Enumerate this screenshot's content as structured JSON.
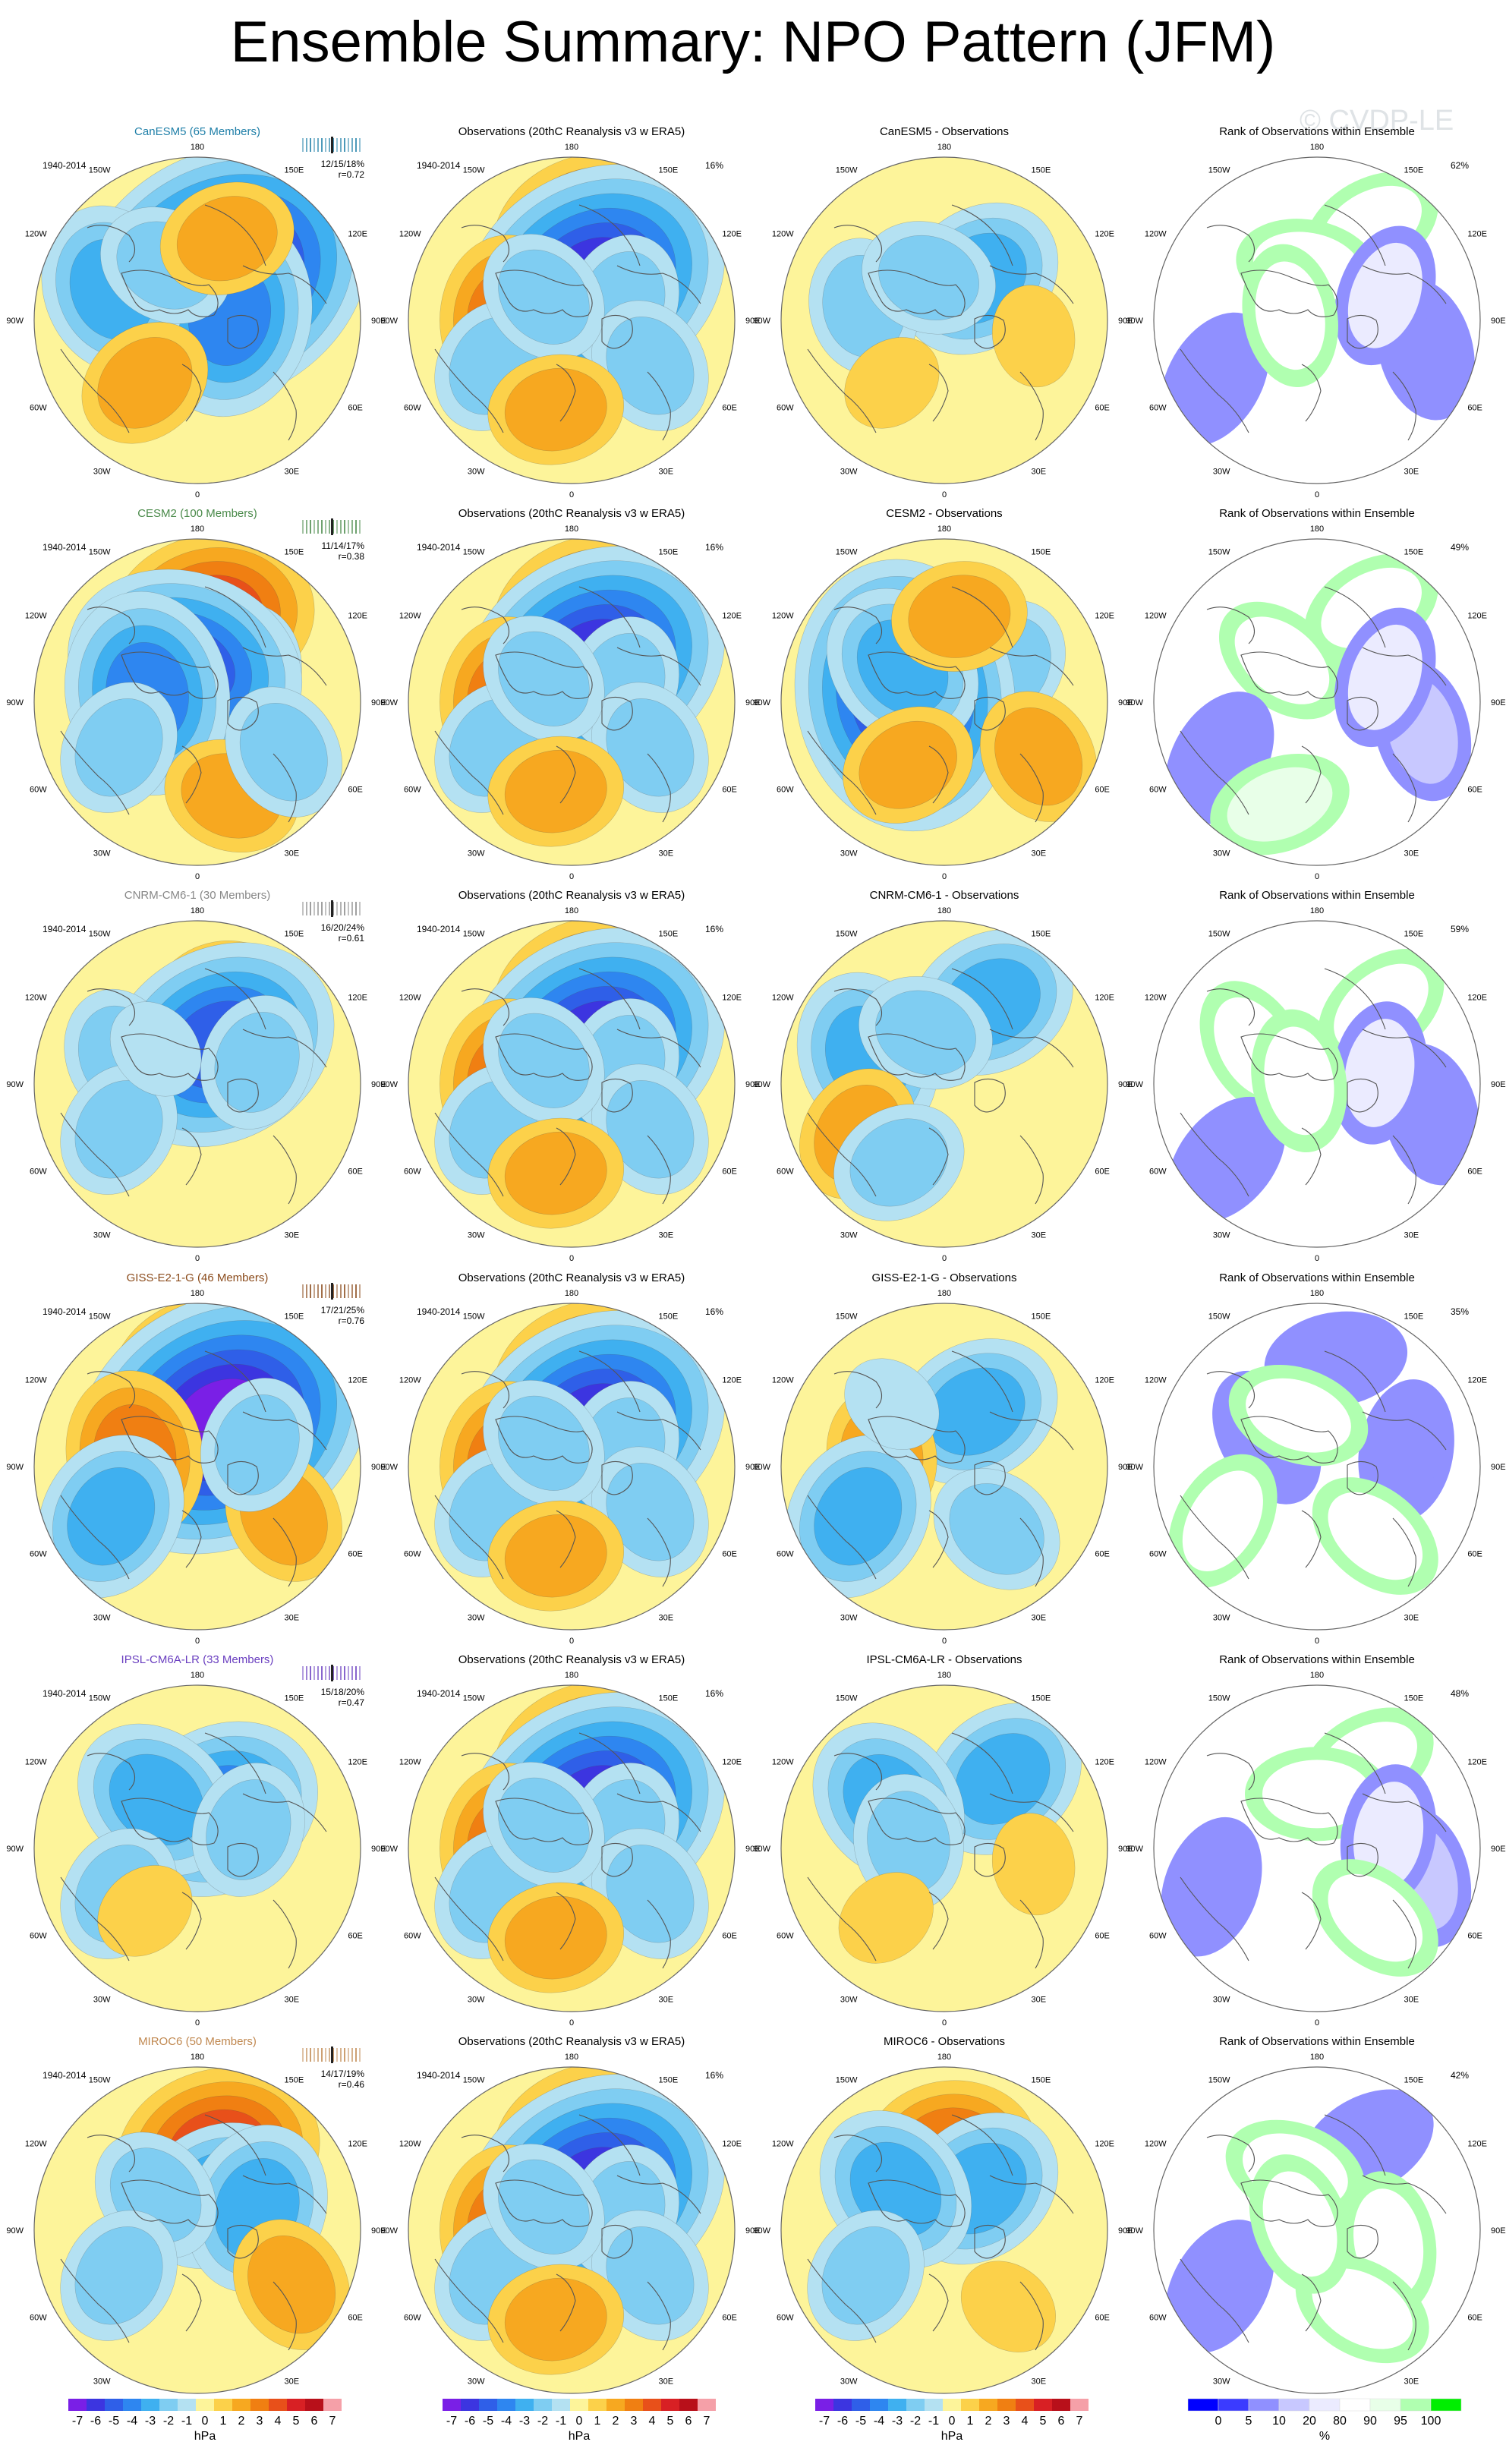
{
  "page": {
    "title": "Ensemble Summary: NPO Pattern (JFM)",
    "watermark": "© CVDP-LE"
  },
  "palette": {
    "anom": [
      "#7a1fe6",
      "#3c35e0",
      "#2f5fe8",
      "#2e86f0",
      "#3fb0f0",
      "#7fcdf2",
      "#b4e1f2",
      "#fdf49a",
      "#fcd14a",
      "#f7a820",
      "#f07f12",
      "#e8501a",
      "#d82024",
      "#b8101a",
      "#f5a0a8"
    ],
    "rank": [
      "#0000ff",
      "#3b3bff",
      "#9090ff",
      "#c8c8ff",
      "#ebebff",
      "#ffffff",
      "#e8ffe8",
      "#b0ffb0",
      "#00ee00"
    ]
  },
  "column_titles": {
    "obs": "Observations (20thC Reanalysis v3 w ERA5)",
    "diff_suffix": " - Observations",
    "rank": "Rank of Observations within Ensemble"
  },
  "period": "1940-2014",
  "longitude_labels": [
    "180",
    "150E",
    "120E",
    "90E",
    "60E",
    "30E",
    "0",
    "30W",
    "60W",
    "90W",
    "120W",
    "150W"
  ],
  "obs_variance": "16%",
  "rows": [
    {
      "model": "CanESM5 (65 Members)",
      "color": "#1f7fa8",
      "stats": "12/15/18%",
      "corr": "r=0.72",
      "rank_pct": "62%",
      "model_field": [
        [
          150,
          62,
          -6.5
        ],
        [
          100,
          72,
          -3.5
        ],
        [
          250,
          40,
          -2.5
        ],
        [
          210,
          55,
          -1.5
        ],
        [
          320,
          45,
          1.5
        ],
        [
          160,
          42,
          1.2
        ]
      ],
      "diff_field": [
        [
          140,
          60,
          -2.2
        ],
        [
          260,
          45,
          -1.8
        ],
        [
          200,
          65,
          -1.2
        ],
        [
          320,
          45,
          0.8
        ],
        [
          80,
          40,
          0.8
        ]
      ],
      "rank_field": [
        [
          150,
          30,
          70
        ],
        [
          190,
          60,
          72
        ],
        [
          300,
          25,
          5
        ],
        [
          75,
          28,
          8
        ],
        [
          110,
          50,
          20
        ],
        [
          260,
          75,
          75
        ]
      ]
    },
    {
      "model": "CESM2 (100 Members)",
      "color": "#4a8a4a",
      "stats": "11/14/17%",
      "corr": "r=0.38",
      "rank_pct": "49%",
      "model_field": [
        [
          170,
          42,
          3.5
        ],
        [
          120,
          70,
          -2.5
        ],
        [
          200,
          70,
          -4.5
        ],
        [
          260,
          62,
          -3.5
        ],
        [
          300,
          40,
          -1.5
        ],
        [
          20,
          35,
          2
        ],
        [
          60,
          35,
          -1.5
        ]
      ],
      "diff_field": [
        [
          120,
          50,
          -2
        ],
        [
          260,
          68,
          -5.5
        ],
        [
          230,
          60,
          -3
        ],
        [
          330,
          50,
          1.5
        ],
        [
          60,
          30,
          1.5
        ],
        [
          170,
          42,
          1.5
        ]
      ],
      "rank_field": [
        [
          150,
          30,
          72
        ],
        [
          220,
          60,
          72
        ],
        [
          300,
          28,
          5
        ],
        [
          75,
          30,
          10
        ],
        [
          110,
          50,
          20
        ],
        [
          340,
          30,
          80
        ]
      ]
    },
    {
      "model": "CNRM-CM6-1 (30 Members)",
      "color": "#888888",
      "stats": "16/20/24%",
      "corr": "r=0.61",
      "rank_pct": "59%",
      "model_field": [
        [
          165,
          40,
          2
        ],
        [
          150,
          65,
          -5
        ],
        [
          110,
          55,
          -2
        ],
        [
          250,
          45,
          -2
        ],
        [
          300,
          40,
          -1.5
        ],
        [
          230,
          60,
          -1
        ]
      ],
      "diff_field": [
        [
          150,
          38,
          -3
        ],
        [
          250,
          45,
          -2.5
        ],
        [
          200,
          60,
          -2
        ],
        [
          300,
          35,
          1.5
        ],
        [
          330,
          40,
          -1.5
        ]
      ],
      "rank_field": [
        [
          140,
          35,
          75
        ],
        [
          240,
          50,
          72
        ],
        [
          310,
          25,
          5
        ],
        [
          75,
          25,
          8
        ],
        [
          100,
          55,
          20
        ],
        [
          260,
          80,
          70
        ]
      ]
    },
    {
      "model": "GISS-E2-1-G (46 Members)",
      "color": "#8a4a1a",
      "stats": "17/21/25%",
      "corr": "r=0.76",
      "rank_pct": "35%",
      "model_field": [
        [
          170,
          40,
          3.5
        ],
        [
          150,
          62,
          -7
        ],
        [
          260,
          55,
          2.5
        ],
        [
          300,
          35,
          -3
        ],
        [
          60,
          35,
          1.5
        ],
        [
          110,
          55,
          -2
        ]
      ],
      "diff_field": [
        [
          150,
          55,
          -2.5
        ],
        [
          260,
          55,
          2
        ],
        [
          300,
          35,
          -2.5
        ],
        [
          40,
          45,
          -2
        ],
        [
          220,
          45,
          -1
        ]
      ],
      "rank_field": [
        [
          170,
          30,
          5
        ],
        [
          100,
          40,
          8
        ],
        [
          240,
          58,
          8
        ],
        [
          300,
          30,
          72
        ],
        [
          40,
          40,
          72
        ],
        [
          200,
          60,
          72
        ]
      ]
    },
    {
      "model": "IPSL-CM6A-LR (33 Members)",
      "color": "#6a3fc0",
      "stats": "15/18/20%",
      "corr": "r=0.47",
      "rank_pct": "48%",
      "model_field": [
        [
          150,
          65,
          -3.5
        ],
        [
          220,
          55,
          -2.5
        ],
        [
          300,
          40,
          -1.5
        ],
        [
          110,
          60,
          -2
        ],
        [
          320,
          45,
          1
        ]
      ],
      "diff_field": [
        [
          140,
          40,
          -2.5
        ],
        [
          230,
          50,
          -3
        ],
        [
          260,
          70,
          -2
        ],
        [
          320,
          40,
          1
        ],
        [
          80,
          40,
          1
        ]
      ],
      "rank_field": [
        [
          150,
          35,
          75
        ],
        [
          180,
          60,
          72
        ],
        [
          290,
          28,
          5
        ],
        [
          75,
          30,
          10
        ],
        [
          100,
          50,
          20
        ],
        [
          40,
          40,
          70
        ]
      ]
    },
    {
      "model": "MIROC6 (50 Members)",
      "color": "#c08850",
      "stats": "14/17/19%",
      "corr": "r=0.46",
      "rank_pct": "42%",
      "model_field": [
        [
          165,
          45,
          4
        ],
        [
          150,
          68,
          -2.5
        ],
        [
          110,
          55,
          -2.5
        ],
        [
          230,
          60,
          -2
        ],
        [
          300,
          40,
          -1.5
        ],
        [
          60,
          30,
          1.5
        ]
      ],
      "diff_field": [
        [
          175,
          45,
          2.5
        ],
        [
          140,
          60,
          -2.5
        ],
        [
          230,
          55,
          -3
        ],
        [
          300,
          40,
          -1.5
        ],
        [
          40,
          35,
          1
        ]
      ],
      "rank_field": [
        [
          150,
          35,
          5
        ],
        [
          80,
          50,
          72
        ],
        [
          200,
          55,
          72
        ],
        [
          300,
          28,
          5
        ],
        [
          30,
          40,
          72
        ],
        [
          250,
          80,
          70
        ]
      ]
    }
  ],
  "obs_field": [
    [
      165,
      42,
      4
    ],
    [
      150,
      65,
      -5.5
    ],
    [
      110,
      60,
      -1.5
    ],
    [
      270,
      55,
      2.5
    ],
    [
      300,
      40,
      -2
    ],
    [
      60,
      40,
      -1.5
    ],
    [
      230,
      70,
      -1.5
    ],
    [
      350,
      40,
      1.5
    ]
  ],
  "colorbars": [
    {
      "labels": [
        "-7",
        "-6",
        "-5",
        "-4",
        "-3",
        "-2",
        "-1",
        "0",
        "1",
        "2",
        "3",
        "4",
        "5",
        "6",
        "7"
      ],
      "unit": "hPa"
    },
    {
      "labels": [
        "-7",
        "-6",
        "-5",
        "-4",
        "-3",
        "-2",
        "-1",
        "0",
        "1",
        "2",
        "3",
        "4",
        "5",
        "6",
        "7"
      ],
      "unit": "hPa"
    },
    {
      "labels": [
        "-7",
        "-6",
        "-5",
        "-4",
        "-3",
        "-2",
        "-1",
        "0",
        "1",
        "2",
        "3",
        "4",
        "5",
        "6",
        "7"
      ],
      "unit": "hPa"
    },
    {
      "labels": [
        "0",
        "5",
        "10",
        "20",
        "80",
        "90",
        "95",
        "100"
      ],
      "unit": "%"
    }
  ]
}
